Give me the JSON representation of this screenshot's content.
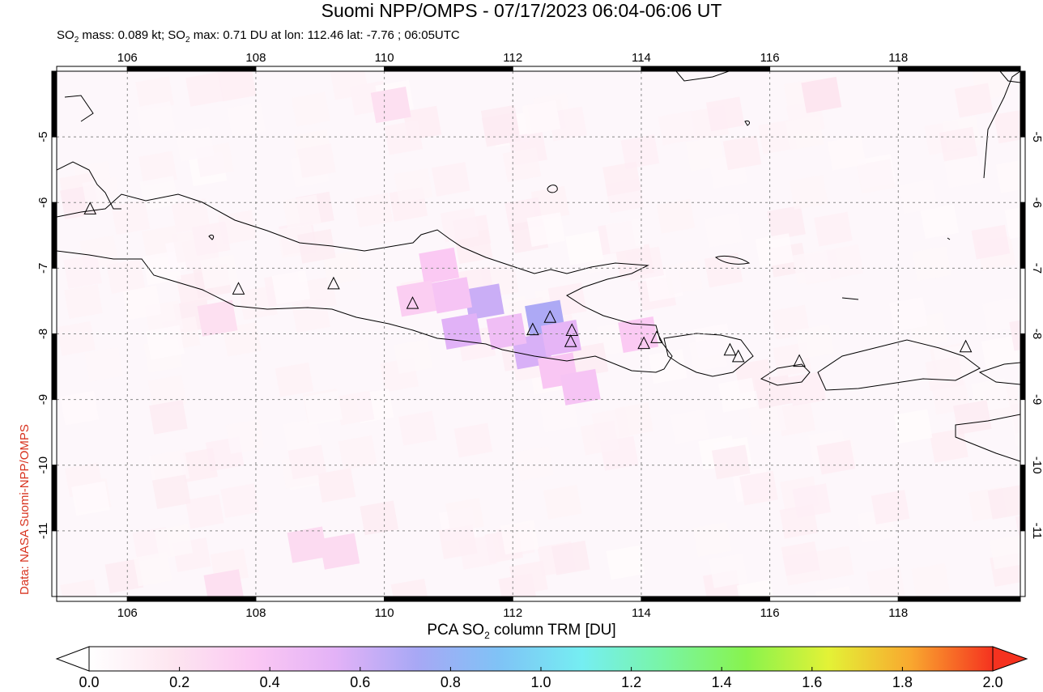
{
  "title": "Suomi NPP/OMPS - 07/17/2023 06:04-06:06 UT",
  "subtitle_parts": {
    "mass_prefix": "SO",
    "mass_sub": "2",
    "mass_text": " mass: 0.089 kt; SO",
    "max_sub": "2",
    "max_text": " max: 0.71 DU at lon: 112.46 lat: -7.76 ; 06:05UTC"
  },
  "credit": "Data: NASA Suomi-NPP/OMPS",
  "colorbar": {
    "title_prefix": "PCA SO",
    "title_sub": "2",
    "title_suffix": " column TRM [DU]",
    "labels": [
      "0.0",
      "0.2",
      "0.4",
      "0.6",
      "0.8",
      "1.0",
      "1.2",
      "1.4",
      "1.6",
      "1.8",
      "2.0"
    ],
    "range": [
      0.0,
      2.0
    ],
    "colors": [
      "#ffffff",
      "#fde6f0",
      "#fbc8f3",
      "#e3b2f7",
      "#a7a8f5",
      "#7fc3f6",
      "#75eef2",
      "#79f5a4",
      "#88f34d",
      "#e3f236",
      "#f9a82f",
      "#f5321f"
    ]
  },
  "map": {
    "lon_range": [
      104.9,
      119.9
    ],
    "lat_range": [
      -12.0,
      -4.0
    ],
    "lon_ticks": [
      106,
      108,
      110,
      112,
      114,
      116,
      118
    ],
    "lat_ticks": [
      -5,
      -6,
      -7,
      -8,
      -9,
      -10,
      -11
    ],
    "lon_labels": [
      "106",
      "108",
      "110",
      "112",
      "114",
      "116",
      "118"
    ],
    "lat_labels": [
      "-5",
      "-6",
      "-7",
      "-8",
      "-9",
      "-10",
      "-11"
    ],
    "grid": "dashed gray",
    "volcano_icon": "triangle-icon",
    "volcanoes": [
      {
        "lon": 105.42,
        "lat": -6.1
      },
      {
        "lon": 107.73,
        "lat": -7.32
      },
      {
        "lon": 109.21,
        "lat": -7.24
      },
      {
        "lon": 110.44,
        "lat": -7.54
      },
      {
        "lon": 112.31,
        "lat": -7.94
      },
      {
        "lon": 112.58,
        "lat": -7.75
      },
      {
        "lon": 112.92,
        "lat": -7.95
      },
      {
        "lon": 112.9,
        "lat": -8.12
      },
      {
        "lon": 114.04,
        "lat": -8.15
      },
      {
        "lon": 114.24,
        "lat": -8.06
      },
      {
        "lon": 115.38,
        "lat": -8.25
      },
      {
        "lon": 115.51,
        "lat": -8.35
      },
      {
        "lon": 116.46,
        "lat": -8.42
      },
      {
        "lon": 119.05,
        "lat": -8.2
      }
    ],
    "so2_cells": [
      {
        "lon": 111.55,
        "lat": -7.5,
        "v": 0.62
      },
      {
        "lon": 111.2,
        "lat": -7.95,
        "v": 0.55
      },
      {
        "lon": 112.5,
        "lat": -7.75,
        "v": 0.71
      },
      {
        "lon": 112.3,
        "lat": -8.25,
        "v": 0.58
      },
      {
        "lon": 112.75,
        "lat": -8.05,
        "v": 0.52
      },
      {
        "lon": 111.9,
        "lat": -7.95,
        "v": 0.45
      },
      {
        "lon": 112.7,
        "lat": -8.55,
        "v": 0.38
      },
      {
        "lon": 113.05,
        "lat": -8.8,
        "v": 0.4
      },
      {
        "lon": 110.85,
        "lat": -6.95,
        "v": 0.36
      },
      {
        "lon": 110.5,
        "lat": -7.45,
        "v": 0.33
      },
      {
        "lon": 113.95,
        "lat": -8.0,
        "v": 0.35
      },
      {
        "lon": 111.05,
        "lat": -7.4,
        "v": 0.4
      },
      {
        "lon": 108.8,
        "lat": -11.2,
        "v": 0.25
      },
      {
        "lon": 109.3,
        "lat": -11.3,
        "v": 0.25
      },
      {
        "lon": 107.4,
        "lat": -7.75,
        "v": 0.22
      },
      {
        "lon": 110.1,
        "lat": -4.5,
        "v": 0.22
      },
      {
        "lon": 116.8,
        "lat": -4.35,
        "v": 0.18
      },
      {
        "lon": 107.5,
        "lat": -11.85,
        "v": 0.22
      }
    ]
  }
}
